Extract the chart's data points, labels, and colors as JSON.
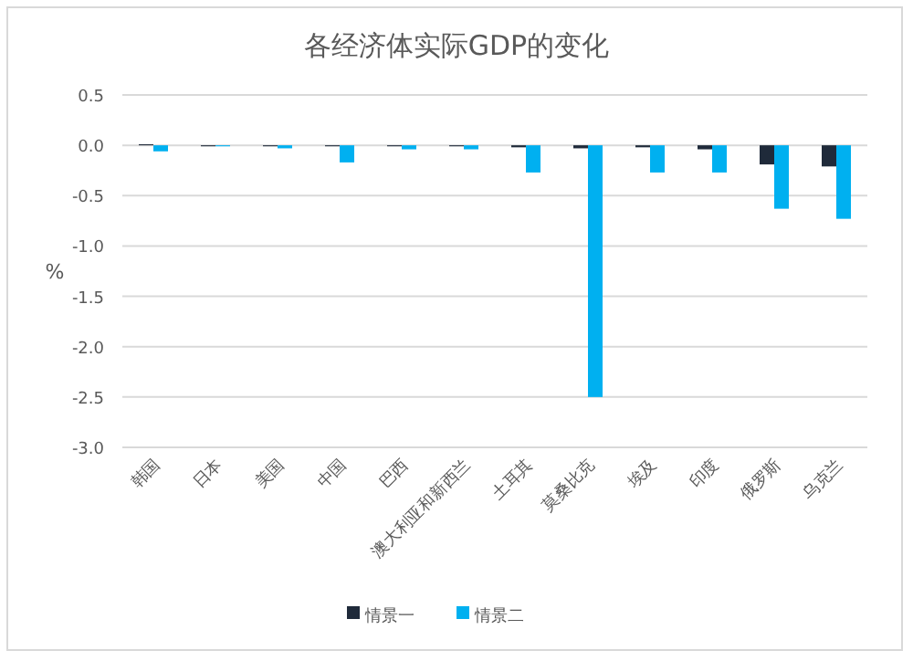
{
  "chart_data": {
    "type": "bar",
    "title": "各经济体实际GDP的变化",
    "ylabel": "%",
    "categories": [
      "韩国",
      "日本",
      "美国",
      "中国",
      "巴西",
      "澳大利亚和新西兰",
      "土耳其",
      "莫桑比克",
      "埃及",
      "印度",
      "俄罗斯",
      "乌克兰"
    ],
    "series": [
      {
        "name": "情景一",
        "color": "#1f2a3a",
        "values": [
          0.01,
          -0.01,
          -0.01,
          -0.01,
          -0.01,
          -0.01,
          -0.02,
          -0.03,
          -0.02,
          -0.04,
          -0.19,
          -0.21
        ]
      },
      {
        "name": "情景二",
        "color": "#00b0f0",
        "values": [
          -0.06,
          -0.01,
          -0.03,
          -0.17,
          -0.04,
          -0.04,
          -0.27,
          -2.5,
          -0.27,
          -0.27,
          -0.63,
          -0.73
        ]
      }
    ],
    "ylim": [
      -3.0,
      0.5
    ],
    "yticks": [
      {
        "value": 0.5,
        "label": "0.5"
      },
      {
        "value": 0,
        "label": "0.0"
      },
      {
        "value": -0.5,
        "label": "-0.5"
      },
      {
        "value": -1,
        "label": "-1.0"
      },
      {
        "value": -1.5,
        "label": "-1.5"
      },
      {
        "value": -2,
        "label": "-2.0"
      },
      {
        "value": -2.5,
        "label": "-2.5"
      },
      {
        "value": -3,
        "label": "-3.0"
      }
    ],
    "grid": "y",
    "legend": "bottom"
  }
}
